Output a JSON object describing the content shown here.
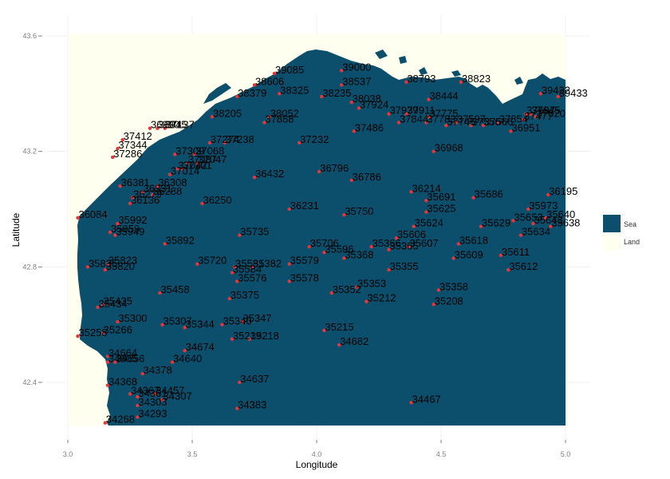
{
  "map": {
    "x_axis": {
      "title": "Longitude",
      "ticks": [
        "3.0",
        "3.5",
        "4.0",
        "4.5",
        "5.0"
      ]
    },
    "y_axis": {
      "title": "Latitude",
      "ticks": [
        "42.4",
        "42.8",
        "43.2",
        "43.6"
      ]
    },
    "legend": {
      "entries": [
        {
          "label": "Sea",
          "color": "#0b4f6c"
        },
        {
          "label": "Land",
          "color": "#fffff0"
        }
      ]
    },
    "colors": {
      "point": "#e8353a",
      "grid": "#f0f0f0"
    }
  },
  "chart_data": {
    "type": "scatter",
    "xlabel": "Longitude",
    "ylabel": "Latitude",
    "xlim": [
      2.92,
      5.1
    ],
    "ylim": [
      42.2,
      43.65
    ],
    "grid": true,
    "legend_position": "right",
    "points": [
      {
        "label": "39085",
        "lon": 3.83,
        "lat": 43.47
      },
      {
        "label": "39000",
        "lon": 4.1,
        "lat": 43.48
      },
      {
        "label": "38606",
        "lon": 3.75,
        "lat": 43.43
      },
      {
        "label": "38537",
        "lon": 4.1,
        "lat": 43.43
      },
      {
        "label": "38793",
        "lon": 4.36,
        "lat": 43.44
      },
      {
        "label": "38823",
        "lon": 4.58,
        "lat": 43.44
      },
      {
        "label": "39422",
        "lon": 4.9,
        "lat": 43.4
      },
      {
        "label": "39433",
        "lon": 4.97,
        "lat": 43.39
      },
      {
        "label": "38379",
        "lon": 3.68,
        "lat": 43.39
      },
      {
        "label": "38325",
        "lon": 3.85,
        "lat": 43.4
      },
      {
        "label": "38235",
        "lon": 4.02,
        "lat": 43.39
      },
      {
        "label": "38444",
        "lon": 4.45,
        "lat": 43.38
      },
      {
        "label": "38038",
        "lon": 4.14,
        "lat": 43.37
      },
      {
        "label": "37924",
        "lon": 4.17,
        "lat": 43.35
      },
      {
        "label": "38205",
        "lon": 3.58,
        "lat": 43.32
      },
      {
        "label": "38052",
        "lon": 3.81,
        "lat": 43.32
      },
      {
        "label": "37888",
        "lon": 3.79,
        "lat": 43.3
      },
      {
        "label": "37979",
        "lon": 4.29,
        "lat": 43.33
      },
      {
        "label": "37911",
        "lon": 4.36,
        "lat": 43.33
      },
      {
        "label": "37775",
        "lon": 4.45,
        "lat": 43.32
      },
      {
        "label": "37844",
        "lon": 4.33,
        "lat": 43.3
      },
      {
        "label": "37783",
        "lon": 4.44,
        "lat": 43.3
      },
      {
        "label": "37597",
        "lon": 4.56,
        "lat": 43.3
      },
      {
        "label": "37745",
        "lon": 4.52,
        "lat": 43.29
      },
      {
        "label": "37556",
        "lon": 4.62,
        "lat": 43.29
      },
      {
        "label": "37566",
        "lon": 4.67,
        "lat": 43.29
      },
      {
        "label": "37854",
        "lon": 4.73,
        "lat": 43.3
      },
      {
        "label": "37477",
        "lon": 4.83,
        "lat": 43.31
      },
      {
        "label": "37620",
        "lon": 4.88,
        "lat": 43.32
      },
      {
        "label": "37645",
        "lon": 4.86,
        "lat": 43.33
      },
      {
        "label": "37697",
        "lon": 4.84,
        "lat": 43.33
      },
      {
        "label": "36951",
        "lon": 4.78,
        "lat": 43.27
      },
      {
        "label": "37486",
        "lon": 4.15,
        "lat": 43.27
      },
      {
        "label": "36990",
        "lon": 3.33,
        "lat": 43.28
      },
      {
        "label": "36945",
        "lon": 3.36,
        "lat": 43.28
      },
      {
        "label": "37137",
        "lon": 3.39,
        "lat": 43.28
      },
      {
        "label": "37412",
        "lon": 3.22,
        "lat": 43.24
      },
      {
        "label": "37344",
        "lon": 3.2,
        "lat": 43.21
      },
      {
        "label": "37286",
        "lon": 3.18,
        "lat": 43.18
      },
      {
        "label": "37232",
        "lon": 3.93,
        "lat": 43.23
      },
      {
        "label": "37274",
        "lon": 3.57,
        "lat": 43.23
      },
      {
        "label": "37238",
        "lon": 3.63,
        "lat": 43.23
      },
      {
        "label": "37309",
        "lon": 3.43,
        "lat": 43.19
      },
      {
        "label": "37068",
        "lon": 3.51,
        "lat": 43.19
      },
      {
        "label": "37087",
        "lon": 3.48,
        "lat": 43.16
      },
      {
        "label": "37047",
        "lon": 3.52,
        "lat": 43.16
      },
      {
        "label": "37201",
        "lon": 3.46,
        "lat": 43.14
      },
      {
        "label": "37042",
        "lon": 3.44,
        "lat": 43.14
      },
      {
        "label": "37014",
        "lon": 3.41,
        "lat": 43.12
      },
      {
        "label": "36968",
        "lon": 4.47,
        "lat": 43.2
      },
      {
        "label": "36796",
        "lon": 4.01,
        "lat": 43.13
      },
      {
        "label": "36786",
        "lon": 4.14,
        "lat": 43.1
      },
      {
        "label": "36432",
        "lon": 3.75,
        "lat": 43.11
      },
      {
        "label": "36381",
        "lon": 3.21,
        "lat": 43.08
      },
      {
        "label": "36308",
        "lon": 3.36,
        "lat": 43.08
      },
      {
        "label": "36331",
        "lon": 3.3,
        "lat": 43.06
      },
      {
        "label": "36288",
        "lon": 3.34,
        "lat": 43.05
      },
      {
        "label": "36279",
        "lon": 3.26,
        "lat": 43.04
      },
      {
        "label": "36136",
        "lon": 3.25,
        "lat": 43.02
      },
      {
        "label": "36250",
        "lon": 3.54,
        "lat": 43.02
      },
      {
        "label": "36214",
        "lon": 4.38,
        "lat": 43.06
      },
      {
        "label": "36195",
        "lon": 4.93,
        "lat": 43.05
      },
      {
        "label": "35686",
        "lon": 4.63,
        "lat": 43.04
      },
      {
        "label": "35691",
        "lon": 4.44,
        "lat": 43.03
      },
      {
        "label": "36231",
        "lon": 3.89,
        "lat": 43.0
      },
      {
        "label": "35625",
        "lon": 4.44,
        "lat": 42.99
      },
      {
        "label": "35750",
        "lon": 4.11,
        "lat": 42.98
      },
      {
        "label": "36084",
        "lon": 3.04,
        "lat": 42.97
      },
      {
        "label": "35992",
        "lon": 3.2,
        "lat": 42.95
      },
      {
        "label": "35973",
        "lon": 4.85,
        "lat": 43.0
      },
      {
        "label": "35640",
        "lon": 4.92,
        "lat": 42.97
      },
      {
        "label": "35638",
        "lon": 4.94,
        "lat": 42.94
      },
      {
        "label": "35629",
        "lon": 4.66,
        "lat": 42.94
      },
      {
        "label": "35653",
        "lon": 4.79,
        "lat": 42.96
      },
      {
        "label": "35643",
        "lon": 4.87,
        "lat": 42.95
      },
      {
        "label": "35624",
        "lon": 4.39,
        "lat": 42.94
      },
      {
        "label": "35959",
        "lon": 3.17,
        "lat": 42.92
      },
      {
        "label": "35949",
        "lon": 3.19,
        "lat": 42.91
      },
      {
        "label": "35735",
        "lon": 3.69,
        "lat": 42.91
      },
      {
        "label": "35634",
        "lon": 4.82,
        "lat": 42.91
      },
      {
        "label": "35606",
        "lon": 4.32,
        "lat": 42.9
      },
      {
        "label": "35618",
        "lon": 4.57,
        "lat": 42.88
      },
      {
        "label": "35892",
        "lon": 3.39,
        "lat": 42.88
      },
      {
        "label": "35706",
        "lon": 3.97,
        "lat": 42.87
      },
      {
        "label": "35366",
        "lon": 4.22,
        "lat": 42.87
      },
      {
        "label": "35607",
        "lon": 4.37,
        "lat": 42.87
      },
      {
        "label": "35365",
        "lon": 4.29,
        "lat": 42.86
      },
      {
        "label": "35596",
        "lon": 4.03,
        "lat": 42.85
      },
      {
        "label": "35611",
        "lon": 4.74,
        "lat": 42.84
      },
      {
        "label": "35368",
        "lon": 4.11,
        "lat": 42.83
      },
      {
        "label": "35609",
        "lon": 4.55,
        "lat": 42.83
      },
      {
        "label": "35720",
        "lon": 3.52,
        "lat": 42.81
      },
      {
        "label": "35581",
        "lon": 3.67,
        "lat": 42.8
      },
      {
        "label": "35382",
        "lon": 3.74,
        "lat": 42.8
      },
      {
        "label": "35579",
        "lon": 3.89,
        "lat": 42.81
      },
      {
        "label": "35823",
        "lon": 3.16,
        "lat": 42.81
      },
      {
        "label": "35835",
        "lon": 3.08,
        "lat": 42.8
      },
      {
        "label": "35820",
        "lon": 3.15,
        "lat": 42.79
      },
      {
        "label": "35355",
        "lon": 4.29,
        "lat": 42.79
      },
      {
        "label": "35612",
        "lon": 4.77,
        "lat": 42.79
      },
      {
        "label": "35584",
        "lon": 3.66,
        "lat": 42.78
      },
      {
        "label": "35576",
        "lon": 3.68,
        "lat": 42.75
      },
      {
        "label": "35578",
        "lon": 3.89,
        "lat": 42.75
      },
      {
        "label": "35353",
        "lon": 4.16,
        "lat": 42.73
      },
      {
        "label": "35358",
        "lon": 4.49,
        "lat": 42.72
      },
      {
        "label": "35352",
        "lon": 4.06,
        "lat": 42.71
      },
      {
        "label": "35458",
        "lon": 3.37,
        "lat": 42.71
      },
      {
        "label": "35375",
        "lon": 3.65,
        "lat": 42.69
      },
      {
        "label": "35212",
        "lon": 4.2,
        "lat": 42.68
      },
      {
        "label": "35208",
        "lon": 4.47,
        "lat": 42.67
      },
      {
        "label": "35435",
        "lon": 3.14,
        "lat": 42.67
      },
      {
        "label": "35434",
        "lon": 3.12,
        "lat": 42.66
      },
      {
        "label": "35300",
        "lon": 3.2,
        "lat": 42.61
      },
      {
        "label": "35347",
        "lon": 3.7,
        "lat": 42.61
      },
      {
        "label": "35307",
        "lon": 3.38,
        "lat": 42.6
      },
      {
        "label": "35344",
        "lon": 3.47,
        "lat": 42.59
      },
      {
        "label": "35340",
        "lon": 3.62,
        "lat": 42.6
      },
      {
        "label": "35215",
        "lon": 4.03,
        "lat": 42.58
      },
      {
        "label": "35266",
        "lon": 3.14,
        "lat": 42.57
      },
      {
        "label": "35258",
        "lon": 3.04,
        "lat": 42.56
      },
      {
        "label": "35218",
        "lon": 3.73,
        "lat": 42.55
      },
      {
        "label": "35219",
        "lon": 3.66,
        "lat": 42.55
      },
      {
        "label": "34682",
        "lon": 4.09,
        "lat": 42.53
      },
      {
        "label": "34674",
        "lon": 3.47,
        "lat": 42.51
      },
      {
        "label": "34664",
        "lon": 3.16,
        "lat": 42.49
      },
      {
        "label": "34640",
        "lon": 3.42,
        "lat": 42.47
      },
      {
        "label": "34605",
        "lon": 3.16,
        "lat": 42.47
      },
      {
        "label": "34656",
        "lon": 3.19,
        "lat": 42.47
      },
      {
        "label": "34378",
        "lon": 3.3,
        "lat": 42.43
      },
      {
        "label": "34637",
        "lon": 3.69,
        "lat": 42.4
      },
      {
        "label": "34368",
        "lon": 3.16,
        "lat": 42.39
      },
      {
        "label": "34457",
        "lon": 3.35,
        "lat": 42.36
      },
      {
        "label": "34367",
        "lon": 3.25,
        "lat": 42.36
      },
      {
        "label": "34361",
        "lon": 3.28,
        "lat": 42.35
      },
      {
        "label": "34307",
        "lon": 3.38,
        "lat": 42.34
      },
      {
        "label": "34467",
        "lon": 4.38,
        "lat": 42.33
      },
      {
        "label": "34303",
        "lon": 3.28,
        "lat": 42.32
      },
      {
        "label": "34383",
        "lon": 3.68,
        "lat": 42.31
      },
      {
        "label": "34293",
        "lon": 3.28,
        "lat": 42.28
      },
      {
        "label": "34268",
        "lon": 3.15,
        "lat": 42.26
      }
    ]
  }
}
